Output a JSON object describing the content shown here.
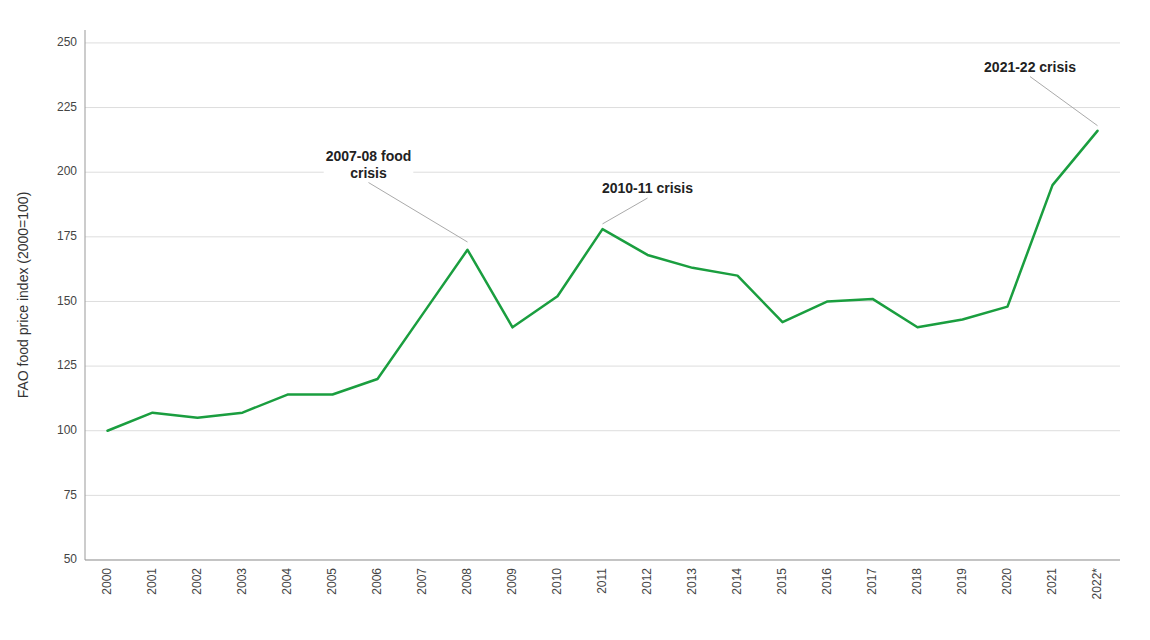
{
  "chart_data": {
    "type": "line",
    "y_label": "FAO food price index (2000=100)",
    "categories": [
      "2000",
      "2001",
      "2002",
      "2003",
      "2004",
      "2005",
      "2006",
      "2007",
      "2008",
      "2009",
      "2010",
      "2011",
      "2012",
      "2013",
      "2014",
      "2015",
      "2016",
      "2017",
      "2018",
      "2019",
      "2020",
      "2021",
      "2022*"
    ],
    "values": [
      100,
      107,
      105,
      107,
      114,
      114,
      120,
      145,
      170,
      140,
      152,
      178,
      168,
      163,
      160,
      142,
      150,
      151,
      140,
      143,
      148,
      195,
      216
    ],
    "color": "#1a9e3f",
    "ylim": [
      50,
      255
    ],
    "yticks": [
      50,
      75,
      100,
      125,
      150,
      175,
      200,
      225,
      250
    ],
    "grid": true,
    "annotations": [
      {
        "text": "2007-08 food\ncrisis",
        "x": 8,
        "y": 173,
        "text_x": 5.8,
        "text_y": 196
      },
      {
        "text": "2010-11 crisis",
        "x": 11,
        "y": 180,
        "text_x": 12,
        "text_y": 190
      },
      {
        "text": "2021-22 crisis",
        "x": 22,
        "y": 218,
        "text_x": 20.5,
        "text_y": 237
      }
    ]
  }
}
